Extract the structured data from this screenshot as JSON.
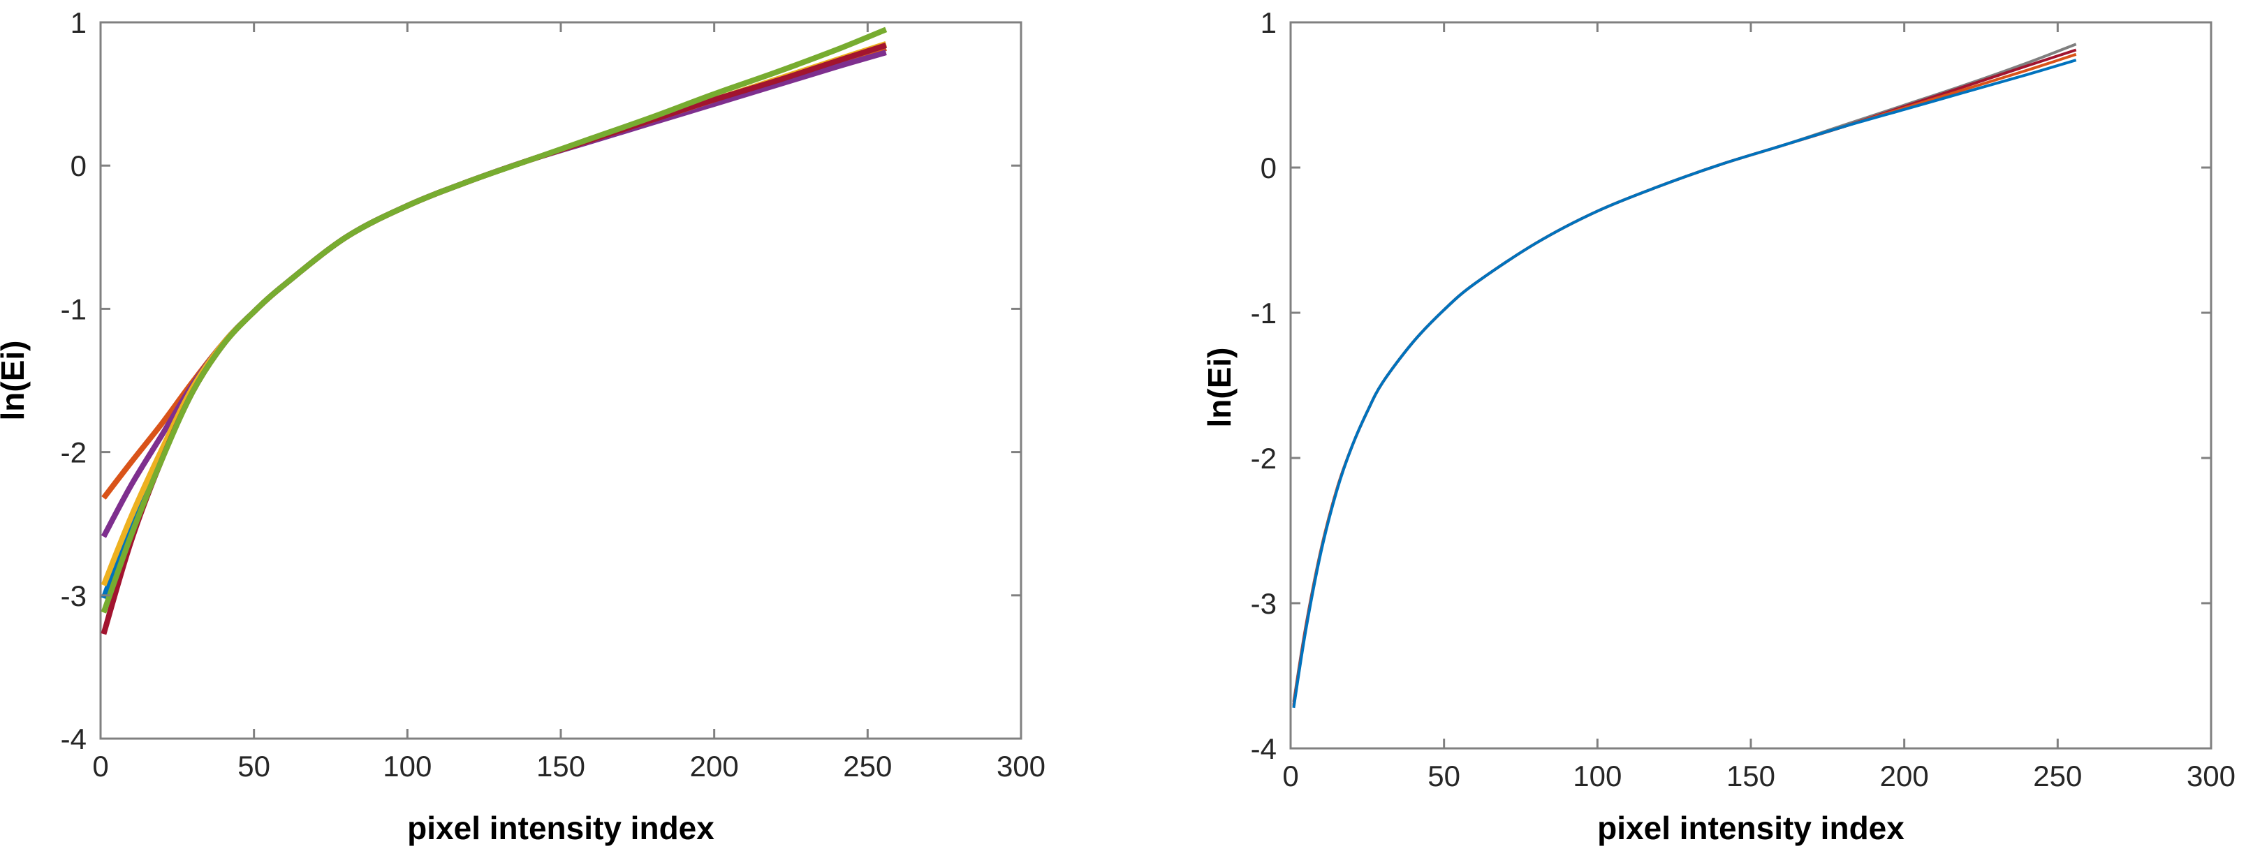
{
  "chart_data": [
    {
      "type": "line",
      "title": "",
      "xlabel": "pixel intensity index",
      "ylabel": "ln(Ei)",
      "xlim": [
        0,
        300
      ],
      "ylim": [
        -4,
        1
      ],
      "xticks": [
        0,
        50,
        100,
        150,
        200,
        250,
        300
      ],
      "yticks": [
        -4,
        -3,
        -2,
        -1,
        0,
        1
      ],
      "grid": false,
      "legend": "none",
      "series": [
        {
          "color": "#D95319",
          "x": [
            1,
            10,
            20,
            30,
            40,
            50,
            60,
            80,
            100,
            120,
            140,
            160,
            180,
            200,
            220,
            240,
            256
          ],
          "y": [
            -2.32,
            -2.07,
            -1.8,
            -1.51,
            -1.24,
            -1.02,
            -0.83,
            -0.5,
            -0.28,
            -0.11,
            0.04,
            0.18,
            0.32,
            0.45,
            0.58,
            0.71,
            0.82
          ]
        },
        {
          "color": "#7E2F8E",
          "x": [
            1,
            10,
            20,
            30,
            40,
            50,
            60,
            80,
            100,
            120,
            140,
            160,
            180,
            200,
            220,
            240,
            256
          ],
          "y": [
            -2.59,
            -2.23,
            -1.88,
            -1.53,
            -1.24,
            -1.02,
            -0.83,
            -0.5,
            -0.28,
            -0.11,
            0.04,
            0.17,
            0.3,
            0.43,
            0.56,
            0.69,
            0.79
          ]
        },
        {
          "color": "#0072BD",
          "x": [
            1,
            10,
            20,
            30,
            40,
            50,
            60,
            80,
            100,
            120,
            140,
            160,
            180,
            200,
            220,
            240,
            256
          ],
          "y": [
            -3.02,
            -2.5,
            -2.0,
            -1.56,
            -1.24,
            -1.02,
            -0.83,
            -0.5,
            -0.28,
            -0.11,
            0.04,
            0.18,
            0.32,
            0.46,
            0.59,
            0.73,
            0.84
          ]
        },
        {
          "color": "#EDB120",
          "x": [
            1,
            10,
            20,
            30,
            40,
            50,
            60,
            80,
            100,
            120,
            140,
            160,
            180,
            200,
            220,
            240,
            256
          ],
          "y": [
            -2.93,
            -2.45,
            -1.98,
            -1.55,
            -1.24,
            -1.02,
            -0.83,
            -0.5,
            -0.28,
            -0.11,
            0.04,
            0.18,
            0.32,
            0.46,
            0.6,
            0.74,
            0.85
          ]
        },
        {
          "color": "#A2142F",
          "x": [
            1,
            10,
            20,
            30,
            40,
            50,
            60,
            80,
            100,
            120,
            140,
            160,
            180,
            200,
            220,
            240,
            256
          ],
          "y": [
            -3.27,
            -2.62,
            -2.05,
            -1.58,
            -1.25,
            -1.02,
            -0.83,
            -0.5,
            -0.28,
            -0.11,
            0.04,
            0.18,
            0.32,
            0.46,
            0.59,
            0.73,
            0.84
          ]
        },
        {
          "color": "#77AC30",
          "x": [
            1,
            10,
            20,
            30,
            40,
            50,
            60,
            80,
            100,
            120,
            140,
            160,
            180,
            200,
            220,
            240,
            256
          ],
          "y": [
            -3.12,
            -2.58,
            -2.05,
            -1.58,
            -1.25,
            -1.02,
            -0.83,
            -0.5,
            -0.28,
            -0.11,
            0.04,
            0.19,
            0.34,
            0.5,
            0.65,
            0.81,
            0.95
          ]
        }
      ]
    },
    {
      "type": "line",
      "title": "",
      "xlabel": "pixel intensity index",
      "ylabel": "ln(Ei)",
      "xlim": [
        0,
        300
      ],
      "ylim": [
        -4,
        1
      ],
      "xticks": [
        0,
        50,
        100,
        150,
        200,
        250,
        300
      ],
      "yticks": [
        -4,
        -3,
        -2,
        -1,
        0,
        1
      ],
      "grid": false,
      "legend": "none",
      "series": [
        {
          "color": "#7F7F7F",
          "x": [
            1,
            5,
            10,
            15,
            20,
            25,
            30,
            40,
            50,
            60,
            80,
            100,
            120,
            140,
            160,
            180,
            200,
            220,
            240,
            256
          ],
          "y": [
            -3.68,
            -3.15,
            -2.62,
            -2.22,
            -1.92,
            -1.68,
            -1.48,
            -1.2,
            -0.98,
            -0.8,
            -0.52,
            -0.3,
            -0.13,
            0.02,
            0.15,
            0.29,
            0.43,
            0.57,
            0.72,
            0.85
          ]
        },
        {
          "color": "#A2142F",
          "x": [
            1,
            5,
            10,
            15,
            20,
            25,
            30,
            40,
            50,
            60,
            80,
            100,
            120,
            140,
            160,
            180,
            200,
            220,
            240,
            256
          ],
          "y": [
            -3.7,
            -3.16,
            -2.63,
            -2.22,
            -1.92,
            -1.68,
            -1.48,
            -1.2,
            -0.98,
            -0.8,
            -0.52,
            -0.3,
            -0.13,
            0.02,
            0.15,
            0.28,
            0.42,
            0.56,
            0.7,
            0.81
          ]
        },
        {
          "color": "#D95319",
          "x": [
            1,
            5,
            10,
            15,
            20,
            25,
            30,
            40,
            50,
            60,
            80,
            100,
            120,
            140,
            160,
            180,
            200,
            220,
            240,
            256
          ],
          "y": [
            -3.71,
            -3.17,
            -2.63,
            -2.22,
            -1.92,
            -1.68,
            -1.48,
            -1.2,
            -0.98,
            -0.8,
            -0.52,
            -0.3,
            -0.13,
            0.02,
            0.15,
            0.28,
            0.41,
            0.54,
            0.67,
            0.78
          ]
        },
        {
          "color": "#0072BD",
          "x": [
            1,
            5,
            10,
            15,
            20,
            25,
            30,
            40,
            50,
            60,
            80,
            100,
            120,
            140,
            160,
            180,
            200,
            220,
            240,
            256
          ],
          "y": [
            -3.72,
            -3.18,
            -2.64,
            -2.23,
            -1.92,
            -1.68,
            -1.48,
            -1.2,
            -0.98,
            -0.8,
            -0.52,
            -0.3,
            -0.13,
            0.02,
            0.15,
            0.28,
            0.4,
            0.52,
            0.64,
            0.74
          ]
        }
      ]
    }
  ]
}
